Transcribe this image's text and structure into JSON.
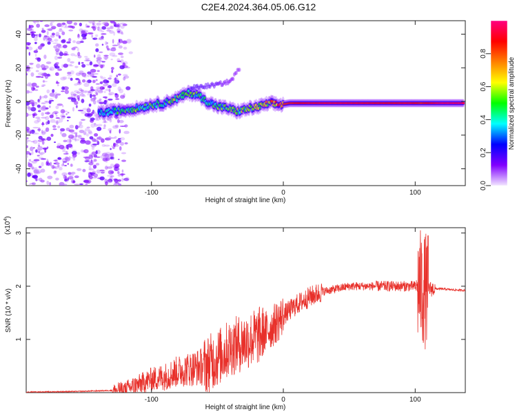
{
  "title": "C2E4.2024.364.05.06.G12",
  "chart_data": [
    {
      "type": "heatmap",
      "xlabel": "Height of straight line (km)",
      "ylabel": "Frequency (Hz)",
      "xlim": [
        -195,
        138
      ],
      "ylim": [
        -50,
        48
      ],
      "xticks": [
        -100,
        0,
        100
      ],
      "xtick_labels": [
        "-100",
        "0",
        "100"
      ],
      "yticks": [
        -40,
        -20,
        0,
        20,
        40
      ],
      "ytick_labels": [
        "-40",
        "-20",
        "0",
        "20",
        "40"
      ],
      "colorbar": {
        "label": "Normalized spectral amplitude",
        "range": [
          0,
          1
        ],
        "ticks": [
          0.0,
          0.2,
          0.4,
          0.6,
          0.8
        ],
        "tick_labels": [
          "0.0",
          "0.2",
          "0.4",
          "0.6",
          "0.8"
        ],
        "colors": [
          "#f2e6ff",
          "#8000ff",
          "#0000ff",
          "#00ffff",
          "#00ff00",
          "#ffff00",
          "#ff8000",
          "#ff0000",
          "#ff0080"
        ]
      },
      "ridge": [
        {
          "x": -140,
          "y": -7,
          "a": 0.35
        },
        {
          "x": -130,
          "y": -6,
          "a": 0.4
        },
        {
          "x": -120,
          "y": -5,
          "a": 0.45
        },
        {
          "x": -110,
          "y": -4,
          "a": 0.45
        },
        {
          "x": -100,
          "y": -2,
          "a": 0.45
        },
        {
          "x": -90,
          "y": -1,
          "a": 0.45
        },
        {
          "x": -80,
          "y": 2,
          "a": 0.5
        },
        {
          "x": -72,
          "y": 5,
          "a": 0.5
        },
        {
          "x": -65,
          "y": 4,
          "a": 0.45
        },
        {
          "x": -58,
          "y": 0,
          "a": 0.45
        },
        {
          "x": -50,
          "y": -3,
          "a": 0.45
        },
        {
          "x": -42,
          "y": -4,
          "a": 0.45
        },
        {
          "x": -35,
          "y": -6,
          "a": 0.5
        },
        {
          "x": -25,
          "y": -4,
          "a": 0.55
        },
        {
          "x": -18,
          "y": -3,
          "a": 0.6
        },
        {
          "x": -10,
          "y": -1,
          "a": 0.65
        },
        {
          "x": -3,
          "y": -2,
          "a": 0.8
        },
        {
          "x": 5,
          "y": -1,
          "a": 0.85
        },
        {
          "x": 20,
          "y": -1,
          "a": 0.9
        },
        {
          "x": 40,
          "y": -1,
          "a": 0.92
        },
        {
          "x": 60,
          "y": -1,
          "a": 0.9
        },
        {
          "x": 80,
          "y": -1,
          "a": 0.88
        },
        {
          "x": 95,
          "y": -1,
          "a": 0.9
        },
        {
          "x": 105,
          "y": -1,
          "a": 0.85
        },
        {
          "x": 120,
          "y": -1,
          "a": 0.95
        },
        {
          "x": 137,
          "y": -1,
          "a": 0.95
        }
      ],
      "branch": [
        {
          "x": -70,
          "y": 8,
          "a": 0.35
        },
        {
          "x": -50,
          "y": 10,
          "a": 0.3
        },
        {
          "x": -40,
          "y": 12,
          "a": 0.25
        },
        {
          "x": -33,
          "y": 20,
          "a": 0.2
        }
      ]
    },
    {
      "type": "line",
      "xlabel": "Height of straight line (km)",
      "ylabel": "SNR (10 * v/v)",
      "y_multiplier": "(x10",
      "y_multiplier_exp": "4",
      "y_multiplier_close": ")",
      "xlim": [
        -195,
        138
      ],
      "ylim": [
        0,
        3.1
      ],
      "xticks": [
        -100,
        0,
        100
      ],
      "xtick_labels": [
        "-100",
        "0",
        "100"
      ],
      "yticks": [
        1,
        2,
        3
      ],
      "ytick_labels": [
        "1",
        "2",
        "3"
      ],
      "color": "#e8302a",
      "series": [
        {
          "x": [
            -195,
            -160,
            -130,
            -120,
            -110,
            -100,
            -90,
            -80,
            -70,
            -60,
            -50,
            -40,
            -35,
            -30,
            -20,
            -10,
            0,
            10,
            20,
            30,
            40,
            50,
            60,
            70,
            80,
            90,
            95,
            100,
            103,
            105,
            107,
            110,
            115,
            120,
            130,
            138
          ],
          "y": [
            0.01,
            0.02,
            0.04,
            0.07,
            0.15,
            0.25,
            0.3,
            0.4,
            0.45,
            0.5,
            0.65,
            0.85,
            0.9,
            0.95,
            1.05,
            1.2,
            1.45,
            1.65,
            1.8,
            1.9,
            1.95,
            2.0,
            2.0,
            2.0,
            2.0,
            2.0,
            2.0,
            2.0,
            2.0,
            1.95,
            1.9,
            1.95,
            1.95,
            1.95,
            1.93,
            1.92
          ]
        }
      ]
    }
  ]
}
